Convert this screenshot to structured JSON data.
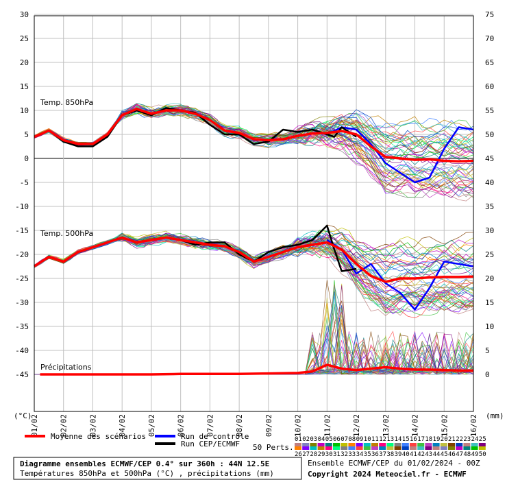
{
  "chart_data": {
    "type": "line",
    "x_ticks": [
      "01/02",
      "02/02",
      "03/02",
      "04/02",
      "05/02",
      "06/02",
      "07/02",
      "08/02",
      "09/02",
      "10/02",
      "11/02",
      "12/02",
      "13/02",
      "14/02",
      "15/02",
      "16/02"
    ],
    "y_left_ticks": [
      30,
      25,
      20,
      15,
      10,
      5,
      0,
      -5,
      -10,
      -15,
      -20,
      -25,
      -30,
      -35,
      -40,
      -45
    ],
    "y_right_ticks": [
      75,
      70,
      65,
      60,
      55,
      50,
      45,
      40,
      35,
      30,
      25,
      20,
      15,
      10,
      5,
      0
    ],
    "y_left_unit": "(°C)",
    "y_right_unit": "(mm)",
    "ylim_left": [
      -45,
      30
    ],
    "panel_labels": {
      "t850": "Temp. 850hPa",
      "t500": "Temp. 500hPa",
      "precip": "Précipitations"
    },
    "series": [
      {
        "name": "Moyenne des scénarios",
        "panel": "t850",
        "x": [
          0,
          0.5,
          1,
          1.5,
          2,
          2.5,
          3,
          3.5,
          4,
          4.5,
          5,
          5.5,
          6,
          6.5,
          7,
          7.5,
          8,
          8.5,
          9,
          9.5,
          10,
          10.5,
          11,
          11.5,
          12,
          12.5,
          13,
          13.5,
          14,
          14.5,
          15
        ],
        "values": [
          4.5,
          5.8,
          3.8,
          3.0,
          3.0,
          5.0,
          9.0,
          10.3,
          9.3,
          10.0,
          10.0,
          9.3,
          8.0,
          5.8,
          5.3,
          4.0,
          3.8,
          4.0,
          4.7,
          5.2,
          5.3,
          5.7,
          5.0,
          2.5,
          0.3,
          0,
          -0.3,
          -0.2,
          -0.5,
          -0.6,
          -0.5
        ]
      },
      {
        "name": "Moyenne des scénarios",
        "panel": "t500",
        "x": [
          0,
          0.5,
          1,
          1.5,
          2,
          2.5,
          3,
          3.5,
          4,
          4.5,
          5,
          5.5,
          6,
          6.5,
          7,
          7.5,
          8,
          8.5,
          9,
          9.5,
          10,
          10.5,
          11,
          11.5,
          12,
          12.5,
          13,
          13.5,
          14,
          14.5,
          15
        ],
        "values": [
          -22.5,
          -20.5,
          -21.5,
          -19.5,
          -18.5,
          -17.5,
          -16.5,
          -17.5,
          -17.0,
          -16.5,
          -17.0,
          -17.5,
          -18.0,
          -18.3,
          -19.5,
          -21.5,
          -20.5,
          -19.5,
          -18.5,
          -18.0,
          -17.5,
          -19.0,
          -22.0,
          -24.5,
          -25.7,
          -25.0,
          -25.0,
          -24.8,
          -24.7,
          -24.7,
          -24.6
        ]
      },
      {
        "name": "Moyenne des scénarios",
        "panel": "precip",
        "x": [
          0.2,
          1,
          2,
          3,
          4,
          5,
          6,
          7,
          8,
          9,
          9.5,
          10,
          10.5,
          11,
          11.5,
          12,
          12.5,
          13,
          13.5,
          14,
          14.5,
          15
        ],
        "values": [
          0,
          0,
          0,
          0,
          0,
          0.1,
          0.1,
          0.1,
          0.2,
          0.3,
          0.6,
          2.0,
          1.2,
          0.9,
          1.2,
          1.5,
          1.2,
          1.0,
          1.0,
          0.9,
          0.8,
          0.8
        ]
      },
      {
        "name": "Run de contrôle",
        "panel": "t850",
        "x": [
          10,
          10.5,
          11,
          11.5,
          12,
          12.5,
          13,
          13.5,
          14,
          14.5,
          15
        ],
        "values": [
          5.0,
          6.5,
          6.0,
          3.0,
          -1.0,
          -3.0,
          -5.0,
          -4.0,
          2.0,
          6.5,
          6.0
        ]
      },
      {
        "name": "Run de contrôle",
        "panel": "t500",
        "x": [
          10,
          10.5,
          11,
          11.5,
          12,
          12.5,
          13,
          13.5,
          14,
          14.5,
          15
        ],
        "values": [
          -17.0,
          -19.0,
          -24.0,
          -22.0,
          -26.0,
          -28.0,
          -31.5,
          -27.0,
          -21.5,
          -22.0,
          -22.5
        ]
      },
      {
        "name": "Run CEP/ECMWF",
        "panel": "t850",
        "x": [
          0,
          0.5,
          1,
          1.5,
          2,
          2.5,
          3,
          3.5,
          4,
          4.5,
          5,
          5.5,
          6,
          6.5,
          7,
          7.5,
          8,
          8.5,
          9,
          9.5,
          10,
          10.25,
          10.5,
          11
        ],
        "values": [
          4.5,
          5.8,
          3.5,
          2.5,
          2.5,
          4.5,
          9.0,
          10.0,
          9.0,
          10.5,
          10.0,
          9.5,
          7.0,
          5.0,
          5.0,
          3.0,
          3.5,
          6.0,
          5.5,
          6.0,
          5.0,
          4.5,
          6.5,
          4.5
        ]
      },
      {
        "name": "Run CEP/ECMWF",
        "panel": "t500",
        "x": [
          0,
          0.5,
          1,
          1.5,
          2,
          2.5,
          3,
          3.5,
          4,
          4.5,
          5,
          5.5,
          6,
          6.5,
          7,
          7.5,
          8,
          8.5,
          9,
          9.5,
          10,
          10.25,
          10.5,
          11
        ],
        "values": [
          -22.5,
          -20.5,
          -21.5,
          -19.5,
          -18.5,
          -17.5,
          -16.5,
          -17.5,
          -17.0,
          -16.5,
          -17.0,
          -18.0,
          -17.5,
          -17.5,
          -20.0,
          -21.5,
          -19.5,
          -18.5,
          -18.0,
          -17.0,
          -14.0,
          -19.0,
          -23.5,
          -23.0
        ]
      }
    ]
  },
  "legend": {
    "mean": "Moyenne des scénarios",
    "control": "Run de contrôle",
    "cep": "Run CEP/ECMWF",
    "perts_label": "50 Perts.",
    "perts_top": [
      "01",
      "02",
      "03",
      "04",
      "05",
      "06",
      "07",
      "08",
      "09",
      "10",
      "11",
      "12",
      "13",
      "14",
      "15",
      "16",
      "17",
      "18",
      "19",
      "20",
      "21",
      "22",
      "23",
      "24",
      "25"
    ],
    "perts_bottom": [
      "26",
      "27",
      "28",
      "29",
      "30",
      "31",
      "32",
      "33",
      "34",
      "35",
      "36",
      "37",
      "38",
      "39",
      "40",
      "41",
      "42",
      "43",
      "44",
      "45",
      "46",
      "47",
      "48",
      "49",
      "50"
    ]
  },
  "colors": {
    "mean": "#ff0000",
    "control": "#0000ff",
    "cep": "#000000",
    "perts": [
      "#c08080",
      "#8080c0",
      "#808000",
      "#c000c0",
      "#008080",
      "#00c000",
      "#c0c000",
      "#ff8000",
      "#8000ff",
      "#00c0c0",
      "#c08000",
      "#ff0080",
      "#00ff80",
      "#808080",
      "#4080ff",
      "#ff4040",
      "#40c040",
      "#c040c0",
      "#0080c0",
      "#c0c040",
      "#804000",
      "#0040c0",
      "#c08080",
      "#40c0c0",
      "#800080"
    ]
  },
  "info": {
    "title": "Diagramme ensembles ECMWF/CEP 0.4° sur 360h : 44N 12.5E",
    "subtitle": "Températures 850hPa et 500hPa (°C) , précipitations (mm)",
    "run": "Ensemble ECMWF/CEP du 01/02/2024 - 00Z",
    "copyright": "Copyright 2024 Meteociel.fr - ECMWF"
  }
}
